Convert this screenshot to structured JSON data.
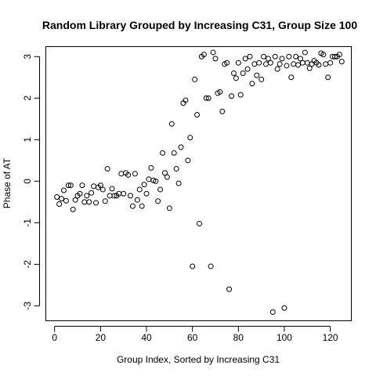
{
  "chart_data": {
    "type": "scatter",
    "title": "Random Library Grouped by Increasing C31, Group Size 100",
    "xlabel": "Group Index, Sorted by Increasing C31",
    "ylabel": "Phase of AT",
    "xlim": [
      -4,
      129
    ],
    "ylim": [
      -3.35,
      3.25
    ],
    "xticks": [
      0,
      20,
      40,
      60,
      80,
      100,
      120
    ],
    "yticks": [
      -3,
      -2,
      -1,
      0,
      1,
      2,
      3
    ],
    "xtick_labels": [
      "0",
      "20",
      "40",
      "60",
      "80",
      "100",
      "120"
    ],
    "ytick_labels": [
      "-3",
      "-2",
      "-1",
      "0",
      "1",
      "2",
      "3"
    ],
    "grid": false,
    "marker": "open-circle",
    "x": [
      1,
      2,
      3,
      4,
      5,
      6,
      7,
      8,
      9,
      10,
      11,
      12,
      13,
      14,
      15,
      16,
      17,
      18,
      19,
      20,
      21,
      22,
      23,
      24,
      25,
      26,
      27,
      28,
      29,
      30,
      31,
      32,
      33,
      34,
      35,
      36,
      37,
      38,
      39,
      40,
      41,
      42,
      43,
      44,
      45,
      46,
      47,
      48,
      49,
      50,
      51,
      52,
      53,
      54,
      55,
      56,
      57,
      58,
      59,
      60,
      61,
      62,
      63,
      64,
      65,
      66,
      67,
      68,
      69,
      70,
      71,
      72,
      73,
      74,
      75,
      76,
      77,
      78,
      79,
      80,
      81,
      82,
      83,
      84,
      85,
      86,
      87,
      88,
      89,
      90,
      91,
      92,
      93,
      94,
      95,
      96,
      97,
      98,
      99,
      100,
      101,
      102,
      103,
      104,
      105,
      106,
      107,
      108,
      109,
      110,
      111,
      112,
      113,
      114,
      115,
      116,
      117,
      118,
      119,
      120,
      121,
      122,
      123,
      124,
      125
    ],
    "y": [
      -0.38,
      -0.55,
      -0.42,
      -0.22,
      -0.47,
      -0.1,
      -0.1,
      -0.68,
      -0.45,
      -0.35,
      -0.3,
      -0.1,
      -0.5,
      -0.35,
      -0.5,
      -0.28,
      -0.12,
      -0.52,
      -0.15,
      -0.1,
      -0.2,
      -0.48,
      0.3,
      -0.35,
      -0.18,
      -0.35,
      -0.35,
      -0.3,
      0.18,
      -0.3,
      0.2,
      0.15,
      -0.35,
      -0.6,
      0.18,
      -0.45,
      -0.2,
      -0.6,
      -0.08,
      -0.3,
      0.05,
      0.32,
      0.02,
      0.0,
      -0.48,
      -0.2,
      0.68,
      0.2,
      0.1,
      -0.65,
      1.38,
      0.68,
      0.3,
      -0.05,
      0.82,
      1.88,
      1.95,
      0.5,
      1.05,
      -2.05,
      2.45,
      1.6,
      -1.02,
      3.0,
      3.05,
      2.0,
      2.0,
      -2.05,
      3.1,
      2.95,
      2.12,
      2.15,
      1.68,
      2.82,
      2.85,
      -2.6,
      2.05,
      2.6,
      2.48,
      2.85,
      2.08,
      2.6,
      2.95,
      2.7,
      3.0,
      2.35,
      2.82,
      2.55,
      2.85,
      2.45,
      3.0,
      2.82,
      2.95,
      2.85,
      -3.15,
      3.0,
      2.7,
      2.82,
      2.95,
      -3.05,
      2.78,
      3.0,
      2.5,
      2.82,
      3.0,
      2.8,
      2.95,
      2.85,
      3.1,
      2.85,
      2.72,
      2.82,
      2.9,
      2.85,
      2.8,
      3.08,
      3.05,
      2.82,
      2.5,
      2.85,
      3.0,
      3.0,
      3.0,
      3.05,
      2.88
    ]
  }
}
